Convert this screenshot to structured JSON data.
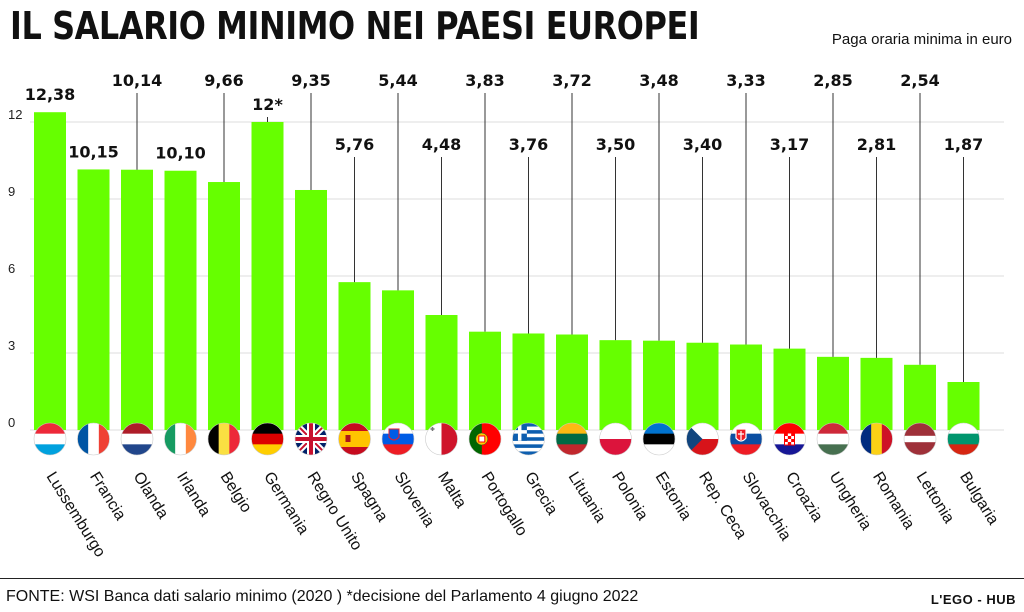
{
  "header": {
    "title": "IL SALARIO MINIMO NEI PAESI EUROPEI",
    "subtitle": "Paga oraria minima in euro"
  },
  "footer": {
    "source": "FONTE: WSI Banca dati salario minimo (2020 ) *decisione del Parlamento 4 giugno 2022",
    "brand": "L'EGO - HUB"
  },
  "colors": {
    "bar": "#66ff00",
    "leader": "#333333",
    "grid": "#dddddd"
  },
  "chart_data": {
    "type": "bar",
    "categories": [
      "Lussemburgo",
      "Francia",
      "Olanda",
      "Irlanda",
      "Belgio",
      "Germania",
      "Regno Unito",
      "Spagna",
      "Slovenia",
      "Malta",
      "Portogallo",
      "Grecia",
      "Lituania",
      "Polonia",
      "Estonia",
      "Rep. Ceca",
      "Slovacchia",
      "Croazia",
      "Ungheria",
      "Romania",
      "Lettonia",
      "Bulgaria"
    ],
    "values": [
      12.38,
      10.15,
      10.14,
      10.1,
      9.66,
      12,
      9.35,
      5.76,
      5.44,
      4.48,
      3.83,
      3.76,
      3.72,
      3.5,
      3.48,
      3.4,
      3.33,
      3.17,
      2.85,
      2.81,
      2.54,
      1.87
    ],
    "data_labels": [
      "12,38",
      "10,15",
      "10,14",
      "10,10",
      "9,66",
      "12*",
      "9,35",
      "5,76",
      "5,44",
      "4,48",
      "3,83",
      "3,76",
      "3,72",
      "3,50",
      "3,48",
      "3,40",
      "3,33",
      "3,17",
      "2,85",
      "2,81",
      "2,54",
      "1,87"
    ],
    "yticks": [
      0,
      3,
      6,
      9,
      12
    ],
    "ylim": [
      0,
      13
    ],
    "grid": true,
    "flag_icons": [
      "luxembourg-flag-icon",
      "france-flag-icon",
      "netherlands-flag-icon",
      "ireland-flag-icon",
      "belgium-flag-icon",
      "germany-flag-icon",
      "united-kingdom-flag-icon",
      "spain-flag-icon",
      "slovenia-flag-icon",
      "malta-flag-icon",
      "portugal-flag-icon",
      "greece-flag-icon",
      "lithuania-flag-icon",
      "poland-flag-icon",
      "estonia-flag-icon",
      "czech-republic-flag-icon",
      "slovakia-flag-icon",
      "croatia-flag-icon",
      "hungary-flag-icon",
      "romania-flag-icon",
      "latvia-flag-icon",
      "bulgaria-flag-icon"
    ]
  }
}
